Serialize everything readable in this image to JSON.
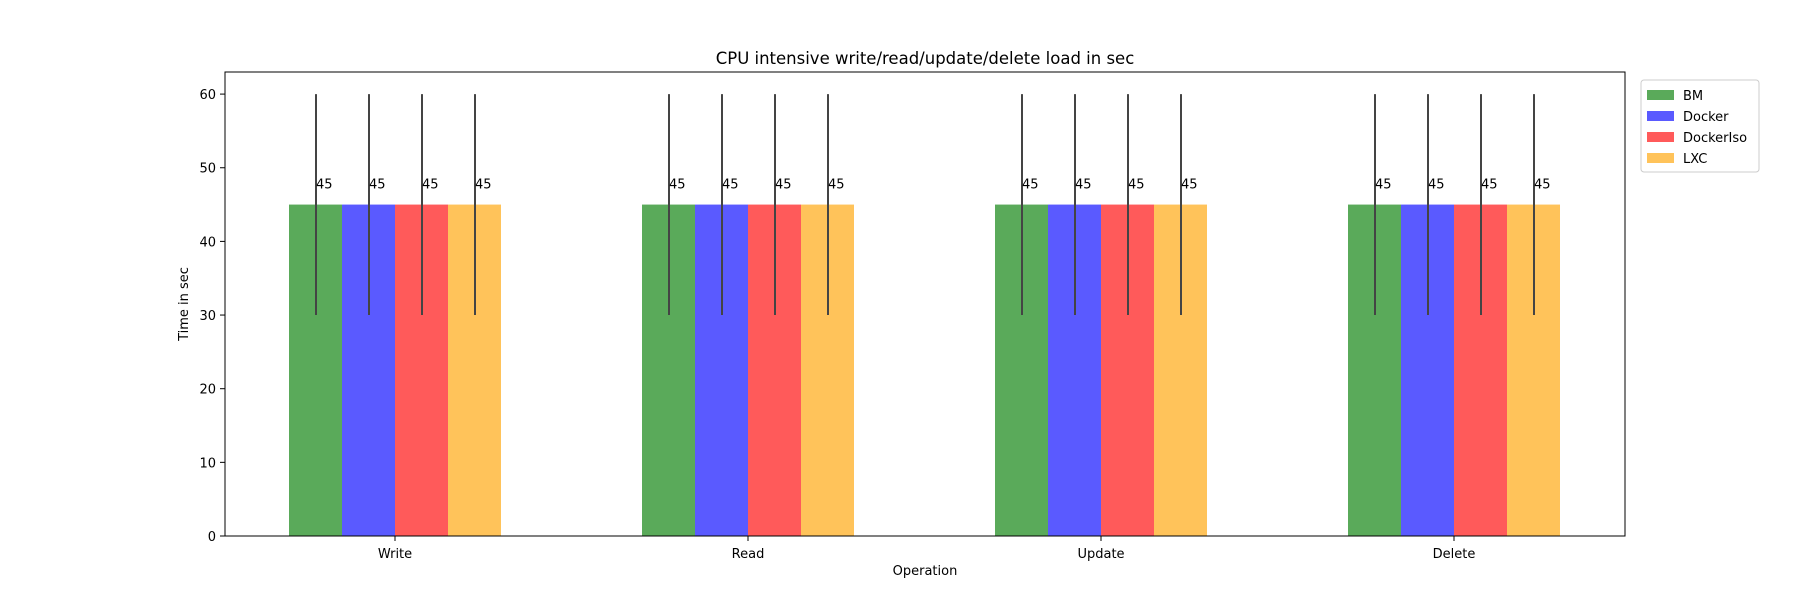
{
  "chart_data": {
    "type": "bar",
    "title": "CPU intensive write/read/update/delete load in sec",
    "xlabel": "Operation",
    "ylabel": "Time in sec",
    "categories": [
      "Write",
      "Read",
      "Update",
      "Delete"
    ],
    "series": [
      {
        "name": "BM",
        "color": "#5aaa5a",
        "values": [
          45,
          45,
          45,
          45
        ],
        "error": [
          15,
          15,
          15,
          15
        ]
      },
      {
        "name": "Docker",
        "color": "#5a5aff",
        "values": [
          45,
          45,
          45,
          45
        ],
        "error": [
          15,
          15,
          15,
          15
        ]
      },
      {
        "name": "DockerIso",
        "color": "#ff5a5a",
        "values": [
          45,
          45,
          45,
          45
        ],
        "error": [
          15,
          15,
          15,
          15
        ]
      },
      {
        "name": "LXC",
        "color": "#ffc35a",
        "values": [
          45,
          45,
          45,
          45
        ],
        "error": [
          15,
          15,
          15,
          15
        ]
      }
    ],
    "data_labels": [
      "45",
      "45",
      "45",
      "45"
    ],
    "ylim": [
      0,
      63
    ],
    "yticks": [
      "0",
      "10",
      "20",
      "30",
      "40",
      "50",
      "60"
    ],
    "error_bar_color": "#444444",
    "grid": false,
    "legend_position": "outside-top-right"
  }
}
